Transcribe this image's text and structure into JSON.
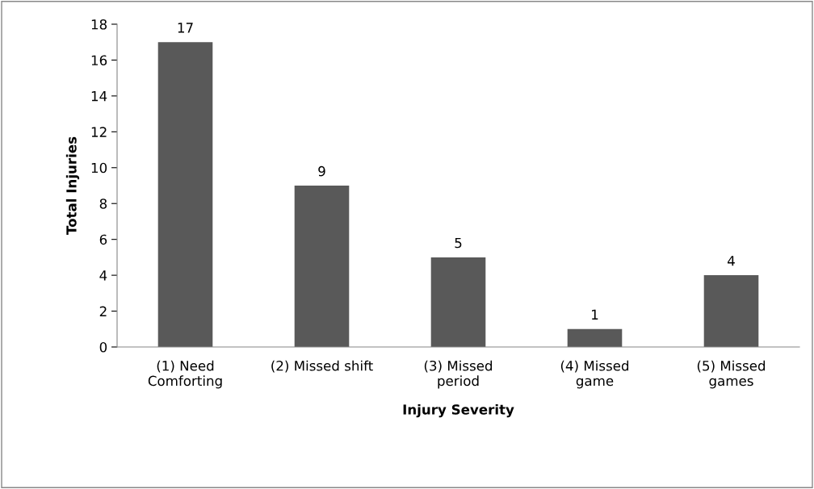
{
  "chart_data": {
    "type": "bar",
    "xlabel": "Injury Severity",
    "ylabel": "Total Injuries",
    "categories": [
      "(1) Need\nComforting",
      "(2) Missed shift",
      "(3) Missed\nperiod",
      "(4) Missed\ngame",
      "(5) Missed\ngames"
    ],
    "values": [
      17,
      9,
      5,
      1,
      4
    ],
    "color": "#595959",
    "ylim": [
      0,
      18
    ],
    "yticks": [
      0,
      2,
      4,
      6,
      8,
      10,
      12,
      14,
      16,
      18
    ],
    "data_labels": true,
    "grid": false,
    "legend": false
  }
}
